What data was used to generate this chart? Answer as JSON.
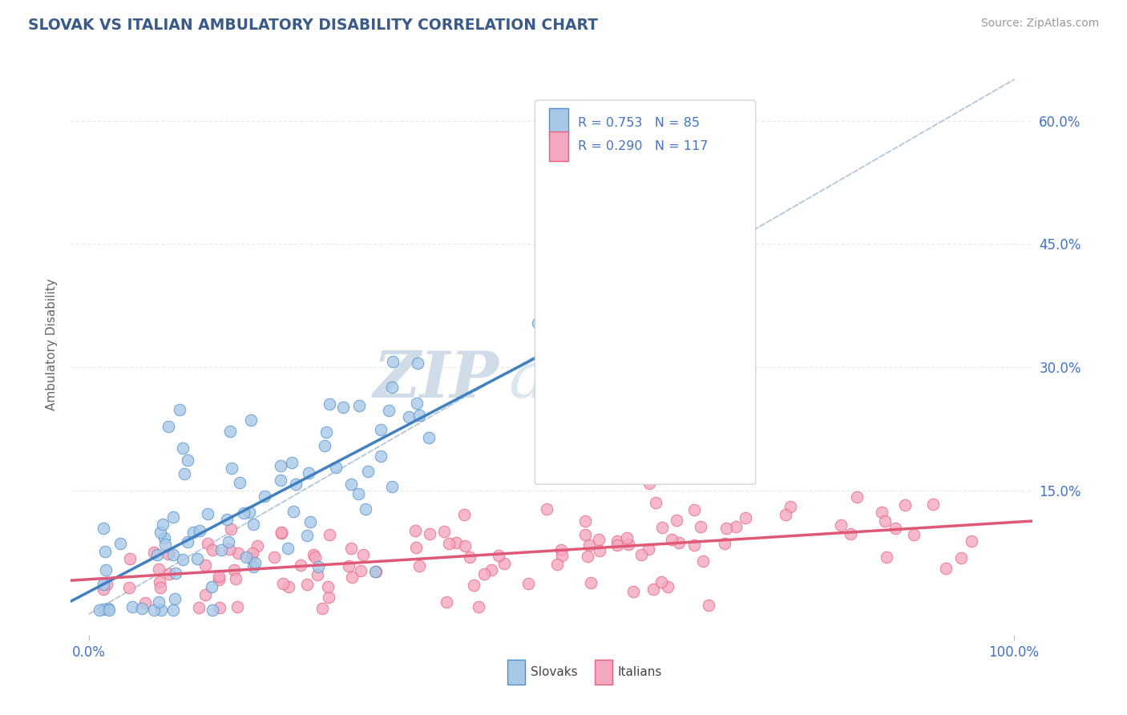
{
  "title": "SLOVAK VS ITALIAN AMBULATORY DISABILITY CORRELATION CHART",
  "source": "Source: ZipAtlas.com",
  "ylabel": "Ambulatory Disability",
  "xlim": [
    -0.02,
    1.02
  ],
  "ylim": [
    -0.025,
    0.68
  ],
  "xtick_labels": [
    "0.0%",
    "100.0%"
  ],
  "ytick_labels": [
    "15.0%",
    "30.0%",
    "45.0%",
    "60.0%"
  ],
  "ytick_vals": [
    0.15,
    0.3,
    0.45,
    0.6
  ],
  "legend_r1": "0.753",
  "legend_n1": "85",
  "legend_r2": "0.290",
  "legend_n2": "117",
  "blue_fill": "#a8c8e8",
  "blue_edge": "#5090c8",
  "pink_fill": "#f4a8c0",
  "pink_edge": "#e86080",
  "blue_line": "#4080c0",
  "pink_line": "#e05878",
  "diag_color": "#a8c0d8",
  "watermark_color": "#d0dce8",
  "title_color": "#3a5a8a",
  "label_color": "#666666",
  "tick_color": "#4472c4",
  "bg_color": "#ffffff",
  "grid_color": "#e8e8e8",
  "seed": 7,
  "n_slovak": 85,
  "n_italian": 117
}
